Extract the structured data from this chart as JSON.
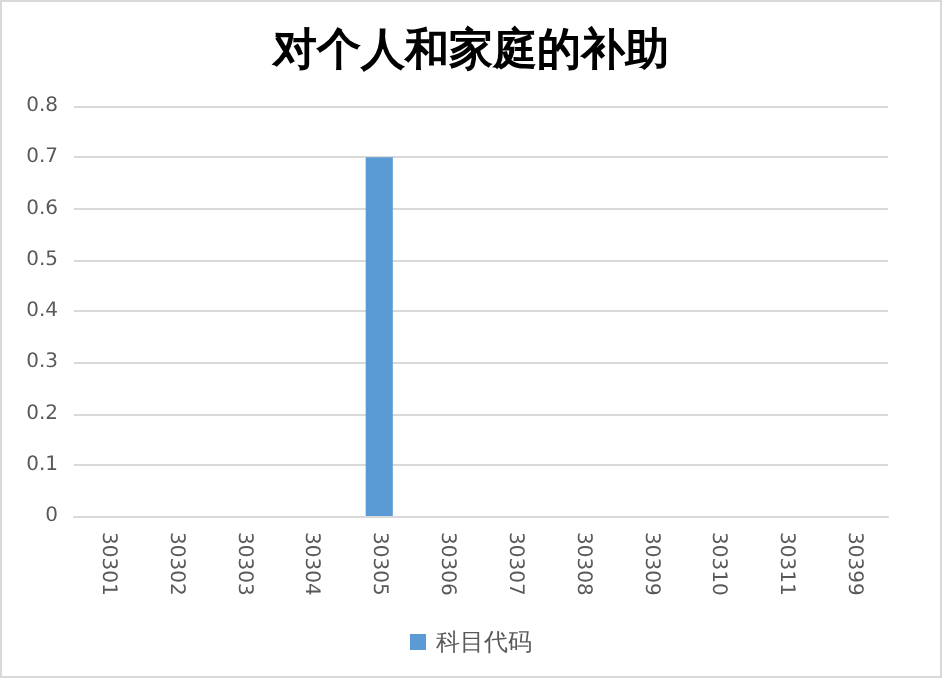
{
  "chart_data": {
    "type": "bar",
    "title": "对个人和家庭的补助",
    "categories": [
      "30301",
      "30302",
      "30303",
      "30304",
      "30305",
      "30306",
      "30307",
      "30308",
      "30309",
      "30310",
      "30311",
      "30399"
    ],
    "series": [
      {
        "name": "科目代码",
        "color": "#5b9bd5",
        "values": [
          0,
          0,
          0,
          0,
          0.7,
          0,
          0,
          0,
          0,
          0,
          0,
          0
        ]
      }
    ],
    "ylim": [
      0,
      0.8
    ],
    "yticks": [
      0,
      0.1,
      0.2,
      0.3,
      0.4,
      0.5,
      0.6,
      0.7,
      0.8
    ],
    "grid": "y",
    "legend": "bottom"
  }
}
